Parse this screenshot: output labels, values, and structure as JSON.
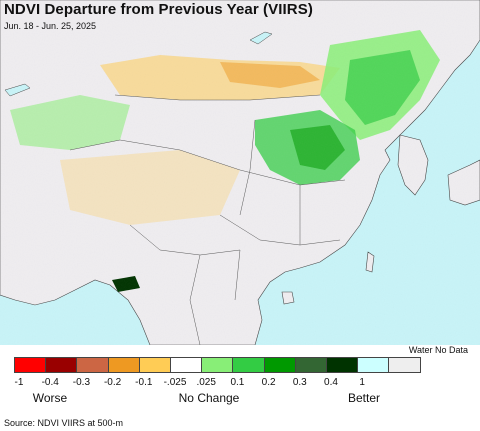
{
  "header": {
    "title": "NDVI Departure from Previous Year (VIIRS)",
    "subtitle": "Jun. 18 - Jun. 25, 2025"
  },
  "legend": {
    "water_label": "Water No Data",
    "colors": [
      "#ff0000",
      "#990000",
      "#cc6644",
      "#ee9922",
      "#ffcc55",
      "#ffffff",
      "#88ee77",
      "#33cc44",
      "#009900",
      "#336633",
      "#003300",
      "#ccffff",
      "#eeeeee"
    ],
    "ticks": [
      "-1",
      "-0.4",
      "-0.3",
      "-0.2",
      "-0.1",
      "-.025",
      ".025",
      "0.1",
      "0.2",
      "0.3",
      "0.4",
      "1"
    ],
    "words": [
      "Worse",
      "No Change",
      "Better"
    ]
  },
  "footer": {
    "source": "Source: NDVI VIIRS at 500-m"
  },
  "map_colors": {
    "ocean": "#c8f4f8",
    "land_nochange": "#efedf0",
    "better_light": "#88ee77",
    "better_mid": "#33cc44",
    "better_dark": "#009900",
    "worse_light": "#ffcc55",
    "worse_mid": "#ee9922",
    "worse_dark": "#cc6644",
    "border": "#444444"
  }
}
